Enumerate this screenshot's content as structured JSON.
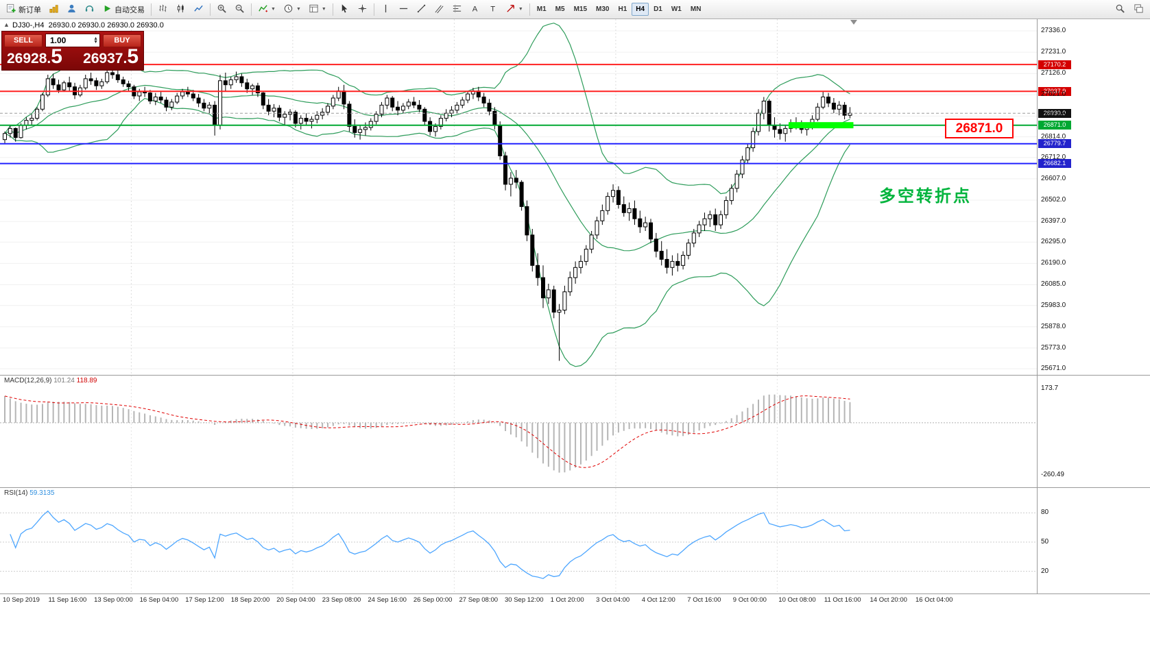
{
  "toolbar": {
    "new_order_label": "新订单",
    "autotrading_label": "自动交易",
    "timeframes": [
      "M1",
      "M5",
      "M15",
      "M30",
      "H1",
      "H4",
      "D1",
      "W1",
      "MN"
    ],
    "active_timeframe": "H4"
  },
  "chart": {
    "symbol_title": "DJ30-,H4",
    "ohlc_text": "26930.0 26930.0 26930.0 26930.0",
    "trade_panel": {
      "sell_label": "SELL",
      "buy_label": "BUY",
      "volume": "1.00",
      "sell_price": "26928.",
      "sell_price_big": "5",
      "buy_price": "26937.",
      "buy_price_big": "5"
    },
    "annotation_text": "多空转折点",
    "price_callout": "26871.0",
    "current_price": "26930.0",
    "price_axis_labels": [
      "27336.0",
      "27231.0",
      "27126.0",
      "27021.0",
      "26916.0",
      "26814.0",
      "26712.0",
      "26607.0",
      "26502.0",
      "26397.0",
      "26295.0",
      "26190.0",
      "26085.0",
      "25983.0",
      "25878.0",
      "25773.0",
      "25671.0"
    ],
    "time_axis_labels": [
      "10 Sep 2019",
      "11 Sep 16:00",
      "13 Sep 00:00",
      "16 Sep 04:00",
      "17 Sep 12:00",
      "18 Sep 20:00",
      "20 Sep 04:00",
      "23 Sep 08:00",
      "24 Sep 16:00",
      "26 Sep 00:00",
      "27 Sep 08:00",
      "30 Sep 12:00",
      "1 Oct 20:00",
      "3 Oct 04:00",
      "4 Oct 12:00",
      "7 Oct 16:00",
      "9 Oct 00:00",
      "10 Oct 08:00",
      "11 Oct 16:00",
      "14 Oct 20:00",
      "16 Oct 04:00"
    ],
    "hlines": [
      {
        "price": 27170.2,
        "label": "27170.2",
        "color": "#ff2020",
        "tag": "#d40000"
      },
      {
        "price": 27037.9,
        "label": "27037.9",
        "color": "#ff2020",
        "tag": "#d40000"
      },
      {
        "price": 26871.0,
        "label": "26871.0",
        "color": "#00a832",
        "tag": "#00a832"
      },
      {
        "price": 26779.7,
        "label": "26779.7",
        "color": "#2020ff",
        "tag": "#2323cc"
      },
      {
        "price": 26682.1,
        "label": "26682.1",
        "color": "#2020ff",
        "tag": "#2323cc"
      }
    ],
    "highlight": {
      "from_candle": 146,
      "to_candle": 157,
      "price": 26871.0,
      "color": "#00ff00"
    }
  },
  "macd": {
    "label": "MACD(12,26,9)",
    "value_main": "101.24",
    "value_signal": "118.89",
    "scale_top": "173.7",
    "scale_bottom": "-260.49"
  },
  "rsi": {
    "label": "RSI(14)",
    "value": "59.3135",
    "levels": [
      80,
      50,
      20
    ]
  },
  "colors": {
    "bull": "#ffffff",
    "bear": "#000000",
    "bollinger": "#2d9c5a",
    "macd_hist": "#b5b5b5",
    "macd_signal": "#e00000",
    "rsi": "#4da6ff",
    "highlight": "#00ff00",
    "callout": "#ff0000",
    "annotation": "#00b43c"
  },
  "chart_data": {
    "type": "candlestick",
    "symbol": "DJ30",
    "timeframe": "H4",
    "overlays": [
      "Bollinger Bands (20,2)"
    ],
    "indicators": [
      "MACD(12,26,9)",
      "RSI(14)"
    ],
    "candles": [
      [
        26800,
        26840,
        26780,
        26830
      ],
      [
        26830,
        26870,
        26810,
        26855
      ],
      [
        26855,
        26860,
        26790,
        26810
      ],
      [
        26810,
        26880,
        26805,
        26870
      ],
      [
        26870,
        26910,
        26850,
        26895
      ],
      [
        26895,
        26925,
        26870,
        26905
      ],
      [
        26905,
        26960,
        26895,
        26950
      ],
      [
        26950,
        27030,
        26940,
        27020
      ],
      [
        27020,
        27120,
        27010,
        27100
      ],
      [
        27100,
        27125,
        27050,
        27070
      ],
      [
        27070,
        27095,
        27030,
        27045
      ],
      [
        27045,
        27090,
        27035,
        27080
      ],
      [
        27080,
        27110,
        27040,
        27060
      ],
      [
        27060,
        27080,
        27000,
        27020
      ],
      [
        27020,
        27070,
        27010,
        27055
      ],
      [
        27055,
        27120,
        27045,
        27100
      ],
      [
        27100,
        27130,
        27070,
        27090
      ],
      [
        27090,
        27105,
        27045,
        27065
      ],
      [
        27065,
        27100,
        27050,
        27085
      ],
      [
        27085,
        27150,
        27075,
        27130
      ],
      [
        27130,
        27165,
        27100,
        27120
      ],
      [
        27120,
        27140,
        27080,
        27095
      ],
      [
        27095,
        27110,
        27060,
        27075
      ],
      [
        27075,
        27090,
        27040,
        27060
      ],
      [
        27060,
        27070,
        27000,
        27015
      ],
      [
        27015,
        27050,
        26990,
        27035
      ],
      [
        27035,
        27060,
        27010,
        27030
      ],
      [
        27030,
        27045,
        26975,
        26990
      ],
      [
        26990,
        27030,
        26970,
        27010
      ],
      [
        27010,
        27035,
        26980,
        26995
      ],
      [
        26995,
        27010,
        26940,
        26960
      ],
      [
        26960,
        27000,
        26945,
        26985
      ],
      [
        26985,
        27030,
        26975,
        27015
      ],
      [
        27015,
        27050,
        27000,
        27035
      ],
      [
        27035,
        27060,
        27010,
        27025
      ],
      [
        27025,
        27045,
        26990,
        27005
      ],
      [
        27005,
        27025,
        26960,
        26980
      ],
      [
        26980,
        27000,
        26940,
        26955
      ],
      [
        26955,
        26985,
        26930,
        26970
      ],
      [
        26970,
        26990,
        26820,
        26870
      ],
      [
        26870,
        27120,
        26850,
        27090
      ],
      [
        27090,
        27130,
        27040,
        27070
      ],
      [
        27070,
        27110,
        27050,
        27095
      ],
      [
        27095,
        27135,
        27080,
        27110
      ],
      [
        27110,
        27125,
        27060,
        27080
      ],
      [
        27080,
        27100,
        27030,
        27050
      ],
      [
        27050,
        27075,
        27020,
        27065
      ],
      [
        27065,
        27080,
        27010,
        27030
      ],
      [
        27030,
        27040,
        26950,
        26970
      ],
      [
        26970,
        27000,
        26920,
        26940
      ],
      [
        26940,
        26975,
        26910,
        26955
      ],
      [
        26955,
        26970,
        26890,
        26910
      ],
      [
        26910,
        26940,
        26870,
        26925
      ],
      [
        26925,
        26950,
        26895,
        26935
      ],
      [
        26935,
        26945,
        26860,
        26880
      ],
      [
        26880,
        26920,
        26850,
        26905
      ],
      [
        26905,
        26930,
        26870,
        26890
      ],
      [
        26890,
        26915,
        26855,
        26900
      ],
      [
        26900,
        26940,
        26880,
        26920
      ],
      [
        26920,
        26955,
        26900,
        26935
      ],
      [
        26935,
        26980,
        26920,
        26965
      ],
      [
        26965,
        27020,
        26950,
        27005
      ],
      [
        27005,
        27060,
        26990,
        27040
      ],
      [
        27040,
        27070,
        26950,
        26975
      ],
      [
        26975,
        26990,
        26840,
        26865
      ],
      [
        26865,
        26900,
        26810,
        26835
      ],
      [
        26835,
        26870,
        26800,
        26850
      ],
      [
        26850,
        26885,
        26820,
        26860
      ],
      [
        26860,
        26905,
        26845,
        26890
      ],
      [
        26890,
        26940,
        26875,
        26925
      ],
      [
        26925,
        26985,
        26910,
        26970
      ],
      [
        26970,
        27020,
        26950,
        27005
      ],
      [
        27005,
        27015,
        26940,
        26960
      ],
      [
        26960,
        26990,
        26920,
        26945
      ],
      [
        26945,
        26980,
        26930,
        26965
      ],
      [
        26965,
        27000,
        26950,
        26985
      ],
      [
        26985,
        27010,
        26955,
        26970
      ],
      [
        26970,
        26995,
        26935,
        26950
      ],
      [
        26950,
        26960,
        26870,
        26890
      ],
      [
        26890,
        26910,
        26820,
        26840
      ],
      [
        26840,
        26880,
        26815,
        26865
      ],
      [
        26865,
        26920,
        26850,
        26905
      ],
      [
        26905,
        26950,
        26890,
        26930
      ],
      [
        26930,
        26965,
        26910,
        26945
      ],
      [
        26945,
        26985,
        26930,
        26970
      ],
      [
        26970,
        27010,
        26955,
        26995
      ],
      [
        26995,
        27040,
        26980,
        27025
      ],
      [
        27025,
        27055,
        27000,
        27040
      ],
      [
        27040,
        27060,
        26990,
        27010
      ],
      [
        27010,
        27030,
        26960,
        26980
      ],
      [
        26980,
        27000,
        26920,
        26940
      ],
      [
        26940,
        26960,
        26850,
        26870
      ],
      [
        26870,
        26890,
        26700,
        26720
      ],
      [
        26720,
        26740,
        26550,
        26580
      ],
      [
        26580,
        26640,
        26520,
        26610
      ],
      [
        26610,
        26650,
        26560,
        26590
      ],
      [
        26590,
        26600,
        26450,
        26470
      ],
      [
        26470,
        26500,
        26300,
        26330
      ],
      [
        26330,
        26360,
        26150,
        26180
      ],
      [
        26180,
        26240,
        26080,
        26120
      ],
      [
        26120,
        26180,
        25970,
        26020
      ],
      [
        26020,
        26090,
        25990,
        26060
      ],
      [
        26060,
        26080,
        25920,
        25950
      ],
      [
        25950,
        25990,
        25710,
        25960
      ],
      [
        25960,
        26080,
        25940,
        26050
      ],
      [
        26050,
        26150,
        26030,
        26120
      ],
      [
        26120,
        26200,
        26090,
        26170
      ],
      [
        26170,
        26230,
        26140,
        26200
      ],
      [
        26200,
        26280,
        26180,
        26260
      ],
      [
        26260,
        26350,
        26240,
        26330
      ],
      [
        26330,
        26420,
        26310,
        26400
      ],
      [
        26400,
        26480,
        26380,
        26450
      ],
      [
        26450,
        26540,
        26430,
        26520
      ],
      [
        26520,
        26580,
        26490,
        26550
      ],
      [
        26550,
        26570,
        26460,
        26480
      ],
      [
        26480,
        26520,
        26420,
        26440
      ],
      [
        26440,
        26490,
        26400,
        26460
      ],
      [
        26460,
        26500,
        26380,
        26410
      ],
      [
        26410,
        26450,
        26340,
        26370
      ],
      [
        26370,
        26420,
        26350,
        26390
      ],
      [
        26390,
        26410,
        26290,
        26310
      ],
      [
        26310,
        26340,
        26220,
        26250
      ],
      [
        26250,
        26300,
        26180,
        26210
      ],
      [
        26210,
        26260,
        26140,
        26170
      ],
      [
        26170,
        26230,
        26130,
        26200
      ],
      [
        26200,
        26240,
        26150,
        26180
      ],
      [
        26180,
        26250,
        26160,
        26230
      ],
      [
        26230,
        26310,
        26210,
        26290
      ],
      [
        26290,
        26360,
        26270,
        26340
      ],
      [
        26340,
        26400,
        26320,
        26380
      ],
      [
        26380,
        26440,
        26350,
        26410
      ],
      [
        26410,
        26450,
        26370,
        26430
      ],
      [
        26430,
        26460,
        26350,
        26380
      ],
      [
        26380,
        26450,
        26360,
        26430
      ],
      [
        26430,
        26520,
        26410,
        26500
      ],
      [
        26500,
        26580,
        26480,
        26560
      ],
      [
        26560,
        26650,
        26540,
        26630
      ],
      [
        26630,
        26720,
        26610,
        26700
      ],
      [
        26700,
        26780,
        26680,
        26760
      ],
      [
        26760,
        26860,
        26740,
        26840
      ],
      [
        26840,
        26950,
        26820,
        26930
      ],
      [
        26930,
        27010,
        26900,
        26990
      ],
      [
        26990,
        27000,
        26840,
        26870
      ],
      [
        26870,
        26910,
        26810,
        26850
      ],
      [
        26850,
        26880,
        26800,
        26830
      ],
      [
        26830,
        26870,
        26790,
        26855
      ],
      [
        26855,
        26900,
        26835,
        26880
      ],
      [
        26880,
        26910,
        26850,
        26870
      ],
      [
        26870,
        26895,
        26830,
        26850
      ],
      [
        26850,
        26885,
        26820,
        26865
      ],
      [
        26865,
        26920,
        26850,
        26900
      ],
      [
        26900,
        26980,
        26890,
        26960
      ],
      [
        26960,
        27035,
        26950,
        27010
      ],
      [
        27010,
        27030,
        26960,
        26980
      ],
      [
        26980,
        27005,
        26930,
        26950
      ],
      [
        26950,
        26990,
        26920,
        26970
      ],
      [
        26970,
        26985,
        26900,
        26920
      ],
      [
        26920,
        26960,
        26905,
        26930
      ]
    ]
  }
}
